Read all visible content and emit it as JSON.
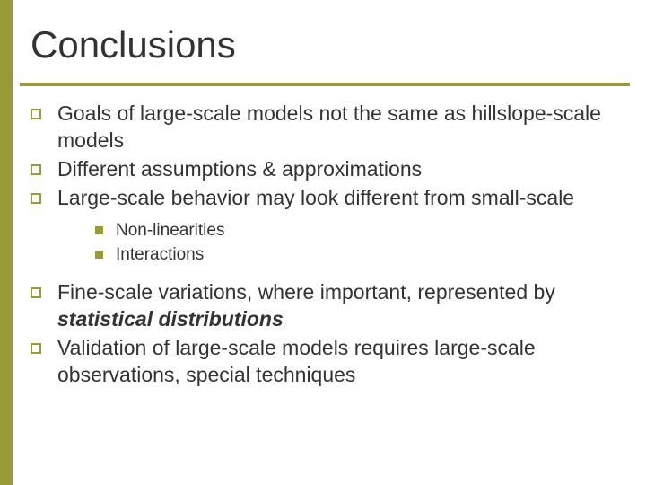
{
  "colors": {
    "accent": "#9a9a36",
    "text": "#333333",
    "background": "#ffffff"
  },
  "typography": {
    "title_fontsize": 42,
    "bullet_fontsize": 23,
    "sub_fontsize": 19,
    "font_family": "Verdana"
  },
  "layout": {
    "slide_width": 720,
    "slide_height": 540,
    "left_strip_width": 14,
    "underline_thickness": 4
  },
  "title": "Conclusions",
  "bullets": {
    "b0": "Goals of large-scale models not the same as hillslope-scale models",
    "b1": "Different assumptions & approximations",
    "b2": "Large-scale behavior may look different from small-scale",
    "b3_pre": "Fine-scale variations, where important, represented by ",
    "b3_emph": "statistical distributions",
    "b4": "Validation of large-scale models requires large-scale observations, special techniques"
  },
  "sub": {
    "s0": "Non-linearities",
    "s1": "Interactions"
  }
}
